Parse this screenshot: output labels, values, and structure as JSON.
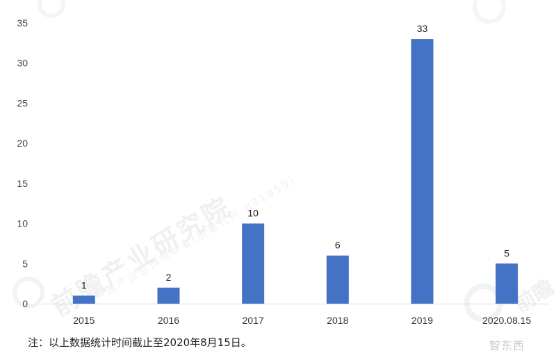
{
  "chart_data": {
    "type": "bar",
    "categories": [
      "2015",
      "2016",
      "2017",
      "2018",
      "2019",
      "2020.08.15"
    ],
    "values": [
      1,
      2,
      10,
      6,
      33,
      5
    ],
    "data_labels": [
      "1",
      "2",
      "10",
      "6",
      "33",
      "5"
    ],
    "ylim": [
      0,
      35
    ],
    "yticks": [
      0,
      5,
      10,
      15,
      20,
      25,
      30,
      35
    ],
    "grid": false,
    "bar_color": "#4472C4"
  },
  "note": "注：以上数据统计时间截止至2020年8月15日。",
  "watermark": {
    "main": "前瞻产业研究院",
    "sub": "中国产业咨询领导者(股票代码 831959)",
    "right": "前瞻",
    "corner": "智东西"
  }
}
